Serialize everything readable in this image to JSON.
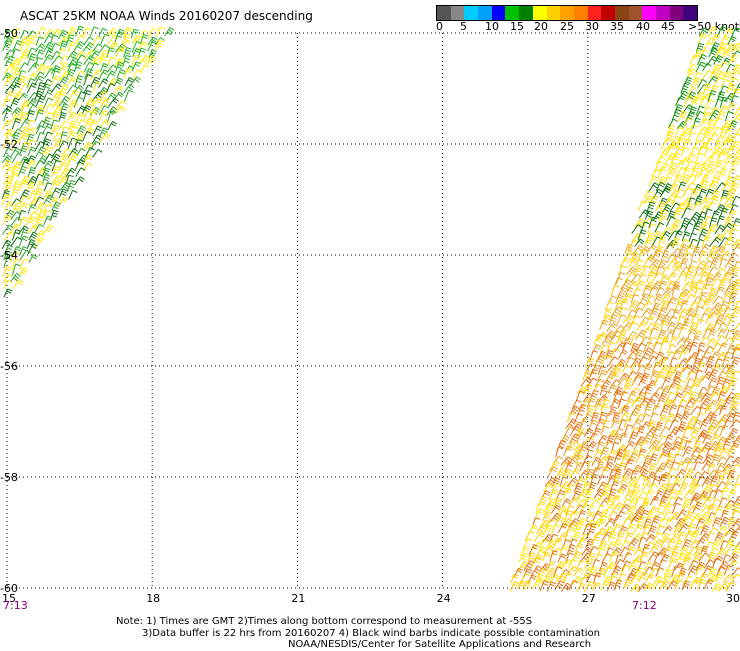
{
  "title": "ASCAT 25KM NOAA Winds 20160207 descending",
  "legend": {
    "colors": [
      "#555555",
      "#888888",
      "#00ccff",
      "#00a0ff",
      "#0000ff",
      "#00c000",
      "#008000",
      "#ffff00",
      "#ffd000",
      "#ffa000",
      "#ff8000",
      "#ff2020",
      "#c00000",
      "#8b4513",
      "#a0522d",
      "#ff00ff",
      "#c000c0",
      "#800080",
      "#400080"
    ],
    "labels": [
      "0",
      "5",
      "10",
      "15",
      "20",
      "25",
      "30",
      "35",
      "40",
      "45",
      ">50 knots"
    ]
  },
  "axes": {
    "x_ticks": [
      "15",
      "18",
      "21",
      "24",
      "27",
      "30"
    ],
    "y_ticks": [
      "-50",
      "-52",
      "-54",
      "-56",
      "-58",
      "-60"
    ],
    "x_range": [
      15,
      30
    ],
    "y_range": [
      -60,
      -50
    ]
  },
  "times": {
    "left": "7:13",
    "right": "7:12"
  },
  "notes": [
    "Note: 1) Times are GMT 2)Times along bottom correspond to measurement at -55S",
    "3)Data buffer is 22 hrs from 20160207 4) Black wind barbs indicate possible contamination",
    "NOAA/NESDIS/Center for Satellite Applications and Research"
  ]
}
